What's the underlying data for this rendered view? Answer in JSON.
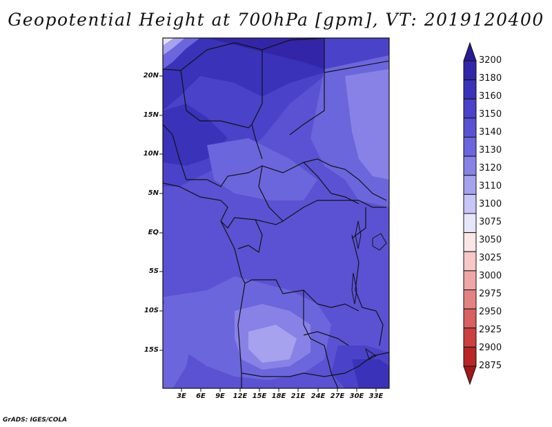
{
  "title": "Geopotential Height at 700hPa [gpm], VT: 2019120400",
  "credit": "GrADS: IGES/COLA",
  "map": {
    "lat_labels": [
      "20N",
      "15N",
      "10N",
      "5N",
      "EQ",
      "5S",
      "10S",
      "15S"
    ],
    "lon_labels": [
      "3E",
      "6E",
      "9E",
      "12E",
      "15E",
      "18E",
      "21E",
      "24E",
      "27E",
      "30E",
      "33E"
    ]
  },
  "colorbar": {
    "levels": [
      "3200",
      "3180",
      "3160",
      "3150",
      "3140",
      "3130",
      "3120",
      "3110",
      "3100",
      "3075",
      "3050",
      "3025",
      "3000",
      "2975",
      "2950",
      "2925",
      "2900",
      "2875"
    ],
    "colors": [
      "#2a1a96",
      "#3225a8",
      "#3a32b8",
      "#4a42c8",
      "#5a52d2",
      "#6c66dc",
      "#8882e6",
      "#a6a2ee",
      "#c8c6f6",
      "#e6e6fb",
      "#fbe6e6",
      "#f6c8c8",
      "#eea6a6",
      "#e48282",
      "#d86060",
      "#cc4040",
      "#b82626",
      "#a01818"
    ]
  }
}
